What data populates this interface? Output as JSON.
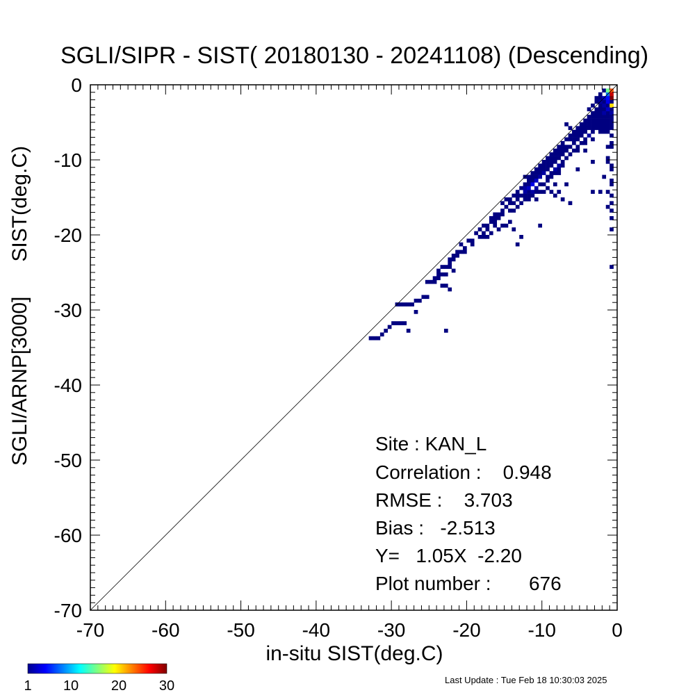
{
  "chart_data": {
    "type": "heatmap",
    "title": "SGLI/SIPR - SIST( 20180130 - 20241108) (Descending)",
    "xlabel": "in-situ SIST(deg.C)",
    "ylabel": "SGLI/ARNP[3000]      SIST(deg.C)",
    "xlim": [
      -70,
      0
    ],
    "ylim": [
      -70,
      0
    ],
    "x_ticks": [
      "-70",
      "-60",
      "-50",
      "-40",
      "-30",
      "-20",
      "-10",
      "0"
    ],
    "y_ticks": [
      "-70",
      "-60",
      "-50",
      "-40",
      "-30",
      "-20",
      "-10",
      "0"
    ],
    "reference_line": "y = x",
    "grid": false,
    "bin_size": 0.5,
    "stats": {
      "site": "Site : KAN_L",
      "correlation": "Correlation :    0.948",
      "rmse": "RMSE :    3.703",
      "bias": "Bias :   -2.513",
      "regression": "Y=   1.05X  -2.20",
      "plot_number": "Plot number :       676"
    },
    "colorbar": {
      "min": 1,
      "max": 30,
      "ticks": [
        "1",
        "10",
        "20",
        "30"
      ],
      "colormap": "jet"
    },
    "cells": [
      [
        -32.5,
        -33.5,
        1
      ],
      [
        -32,
        -33.5,
        1
      ],
      [
        -31.5,
        -33.5,
        1
      ],
      [
        -31,
        -33,
        1
      ],
      [
        -30.5,
        -32.5,
        1
      ],
      [
        -30,
        -32,
        1
      ],
      [
        -29.5,
        -31.5,
        1
      ],
      [
        -29,
        -31.5,
        1
      ],
      [
        -28.5,
        -31.5,
        1
      ],
      [
        -28,
        -31.5,
        1
      ],
      [
        -27.5,
        -32.5,
        1
      ],
      [
        -29,
        -29,
        1
      ],
      [
        -28.5,
        -29,
        1
      ],
      [
        -28,
        -29,
        1
      ],
      [
        -27.5,
        -29,
        1
      ],
      [
        -27,
        -29,
        1
      ],
      [
        -26.5,
        -28.5,
        1
      ],
      [
        -26,
        -28.5,
        1
      ],
      [
        -25.5,
        -28,
        1
      ],
      [
        -25,
        -28,
        1
      ],
      [
        -26.5,
        -30,
        1
      ],
      [
        -22.5,
        -32.5,
        1
      ],
      [
        -24.5,
        -26,
        1
      ],
      [
        -24,
        -26,
        1
      ],
      [
        -23.5,
        -25.5,
        1
      ],
      [
        -23,
        -26.5,
        1
      ],
      [
        -22.5,
        -26.5,
        1
      ],
      [
        -22,
        -27,
        1
      ],
      [
        -23.5,
        -24.5,
        1
      ],
      [
        -23,
        -24,
        1
      ],
      [
        -22.5,
        -24,
        1
      ],
      [
        -22,
        -24,
        1
      ],
      [
        -21.5,
        -24.5,
        1
      ],
      [
        -22.5,
        -25,
        1
      ],
      [
        -22,
        -23,
        1
      ],
      [
        -21.5,
        -22.5,
        1
      ],
      [
        -21,
        -22,
        1
      ],
      [
        -20.5,
        -22,
        1
      ],
      [
        -20,
        -21.5,
        1
      ],
      [
        -20.5,
        -21,
        1
      ],
      [
        -19.5,
        -20.5,
        1
      ],
      [
        -19,
        -20.5,
        1
      ],
      [
        -18.5,
        -19.5,
        1
      ],
      [
        -18,
        -19,
        1
      ],
      [
        -17.5,
        -20,
        1
      ],
      [
        -17,
        -20,
        1
      ],
      [
        -17.5,
        -18.5,
        1
      ],
      [
        -17,
        -18.5,
        1
      ],
      [
        -16.5,
        -18,
        1
      ],
      [
        -16.5,
        -19.5,
        1
      ],
      [
        -16,
        -18,
        1
      ],
      [
        -16.5,
        -17.5,
        1
      ],
      [
        -16,
        -17,
        1
      ],
      [
        -15.5,
        -17,
        1
      ],
      [
        -15,
        -16.5,
        1
      ],
      [
        -15.5,
        -19,
        1
      ],
      [
        -15,
        -18.5,
        1
      ],
      [
        -14.5,
        -18.5,
        1
      ],
      [
        -14,
        -18,
        1
      ],
      [
        -13.5,
        -19,
        1
      ],
      [
        -10,
        -18.5,
        1
      ],
      [
        -13,
        -21,
        1
      ],
      [
        -12.5,
        -20,
        1
      ],
      [
        -15,
        -15.5,
        1
      ],
      [
        -14.5,
        -15,
        1
      ],
      [
        -14,
        -15,
        1
      ],
      [
        -13.5,
        -14.5,
        1
      ],
      [
        -13,
        -14,
        1
      ],
      [
        -12.5,
        -13.5,
        1
      ],
      [
        -14.5,
        -16,
        1
      ],
      [
        -14,
        -16.5,
        1
      ],
      [
        -13.5,
        -16.5,
        1
      ],
      [
        -13,
        -16,
        1
      ],
      [
        -12.5,
        -15.5,
        1
      ],
      [
        -12,
        -15,
        1
      ],
      [
        -12,
        -13.5,
        2
      ],
      [
        -11.5,
        -13,
        1
      ],
      [
        -11,
        -12.5,
        1
      ],
      [
        -10.5,
        -12,
        1
      ],
      [
        -10,
        -11.5,
        1
      ],
      [
        -9.5,
        -11,
        1
      ],
      [
        -12,
        -12,
        1
      ],
      [
        -11.5,
        -12,
        1
      ],
      [
        -11,
        -11.5,
        1
      ],
      [
        -10.5,
        -11,
        1
      ],
      [
        -10,
        -10.5,
        1
      ],
      [
        -9.5,
        -10,
        1
      ],
      [
        -11.5,
        -14,
        1
      ],
      [
        -11,
        -14,
        2
      ],
      [
        -10.5,
        -13.5,
        2
      ],
      [
        -10,
        -13,
        1
      ],
      [
        -9.5,
        -13,
        1
      ],
      [
        -9,
        -12.5,
        1
      ],
      [
        -11.5,
        -15,
        1
      ],
      [
        -11,
        -14.5,
        1
      ],
      [
        -10.5,
        -15,
        1
      ],
      [
        -10,
        -14,
        1
      ],
      [
        -9.5,
        -14,
        1
      ],
      [
        -8.5,
        -14,
        1
      ],
      [
        -9,
        -11,
        1
      ],
      [
        -8.5,
        -10.5,
        1
      ],
      [
        -8,
        -10,
        1
      ],
      [
        -7.5,
        -9.5,
        1
      ],
      [
        -7,
        -9,
        1
      ],
      [
        -6.5,
        -8.5,
        1
      ],
      [
        -9,
        -9.5,
        1
      ],
      [
        -8.5,
        -9,
        1
      ],
      [
        -8,
        -8.5,
        1
      ],
      [
        -7.5,
        -8,
        1
      ],
      [
        -7,
        -7.5,
        1
      ],
      [
        -6.5,
        -7,
        1
      ],
      [
        -6,
        -6.5,
        1
      ],
      [
        -5.5,
        -6,
        1
      ],
      [
        -5,
        -5.5,
        1
      ],
      [
        -4.5,
        -5,
        1
      ],
      [
        -4,
        -4.5,
        1
      ],
      [
        -3.5,
        -4,
        1
      ],
      [
        -8.5,
        -12,
        1
      ],
      [
        -8,
        -11.5,
        1
      ],
      [
        -7.5,
        -11,
        1
      ],
      [
        -7,
        -10.5,
        1
      ],
      [
        -8,
        -13,
        1
      ],
      [
        -7.5,
        -14,
        1
      ],
      [
        -6,
        -8,
        1
      ],
      [
        -5.5,
        -7.5,
        1
      ],
      [
        -5,
        -7,
        1
      ],
      [
        -4.5,
        -6.5,
        1
      ],
      [
        -4,
        -6,
        1
      ],
      [
        -3.5,
        -5.5,
        1
      ],
      [
        -6,
        -7,
        1
      ],
      [
        -5.5,
        -6.5,
        1
      ],
      [
        -5,
        -6,
        1
      ],
      [
        -4.5,
        -5.5,
        1
      ],
      [
        -4,
        -5,
        1
      ],
      [
        -3.5,
        -4.5,
        1
      ],
      [
        -6.5,
        -5,
        1
      ],
      [
        -6,
        -5.5,
        1
      ],
      [
        -3,
        -3.5,
        1
      ],
      [
        -2.5,
        -3,
        1
      ],
      [
        -2,
        -2.5,
        1
      ],
      [
        -1.5,
        -2,
        1
      ],
      [
        -3,
        -4.5,
        1
      ],
      [
        -2.5,
        -4,
        1
      ],
      [
        -2,
        -3.5,
        1
      ],
      [
        -1.5,
        -3,
        1
      ],
      [
        -1,
        -2.5,
        1
      ],
      [
        -0.5,
        -2,
        1
      ],
      [
        -3,
        -5.5,
        1
      ],
      [
        -2.5,
        -5,
        1
      ],
      [
        -2,
        -4.5,
        1
      ],
      [
        -1.5,
        -4,
        1
      ],
      [
        -1,
        -3.5,
        1
      ],
      [
        -0.5,
        -3,
        1
      ],
      [
        -2,
        -6,
        1
      ],
      [
        -1.5,
        -5.5,
        1
      ],
      [
        -1,
        -5,
        1
      ],
      [
        -0.5,
        -4.5,
        1
      ],
      [
        -1,
        -6,
        1
      ],
      [
        -0.5,
        -6.5,
        1
      ],
      [
        -3,
        -7,
        1
      ],
      [
        -4,
        -7.5,
        1
      ],
      [
        -5,
        -8.5,
        1
      ],
      [
        -0.5,
        -7.5,
        1
      ],
      [
        -0.5,
        -8,
        1
      ],
      [
        -1,
        -8,
        1
      ],
      [
        -2.5,
        -1.5,
        1
      ],
      [
        -2,
        -1.5,
        1
      ],
      [
        -2,
        -1,
        1
      ],
      [
        -1.5,
        -0.5,
        1
      ],
      [
        -1,
        -1,
        8
      ],
      [
        -1,
        -0.5,
        15
      ],
      [
        -0.5,
        -0.5,
        24
      ],
      [
        -0.5,
        -1,
        28
      ],
      [
        -0.5,
        -1.5,
        30
      ],
      [
        -0.5,
        -2.5,
        20
      ],
      [
        -1,
        -1.5,
        5
      ],
      [
        -1.5,
        -1.5,
        3
      ],
      [
        -1,
        -2,
        4
      ],
      [
        -0.5,
        -3.5,
        2
      ],
      [
        -1.5,
        -2.5,
        2
      ],
      [
        -2,
        -2,
        2
      ],
      [
        -1,
        -3,
        3
      ],
      [
        -1.5,
        -3.5,
        2
      ],
      [
        -2.5,
        -2,
        1
      ],
      [
        -3,
        -2.5,
        1
      ],
      [
        -0.5,
        -5,
        1
      ],
      [
        -0.5,
        -5.5,
        1
      ],
      [
        -0.5,
        -10.5,
        1
      ],
      [
        -0.5,
        -11,
        1
      ],
      [
        -0.5,
        -12.5,
        1
      ],
      [
        -0.5,
        -13,
        1
      ],
      [
        -0.5,
        -14.5,
        1
      ],
      [
        -0.5,
        -15.5,
        1
      ],
      [
        -0.5,
        -16.5,
        1
      ],
      [
        -0.5,
        -17.5,
        1
      ],
      [
        -0.5,
        -19,
        1
      ],
      [
        -0.5,
        -24,
        1
      ],
      [
        -1,
        -9.5,
        1
      ],
      [
        -1,
        -14,
        1
      ],
      [
        -1,
        -16,
        1
      ],
      [
        -1.5,
        -12,
        1
      ],
      [
        -2,
        -14,
        1
      ],
      [
        -3,
        -14,
        1
      ],
      [
        -6,
        -15.5,
        1
      ],
      [
        -7,
        -15,
        1
      ],
      [
        -7.5,
        -11.5,
        1
      ],
      [
        -6.5,
        -13,
        1
      ],
      [
        -5,
        -11,
        1
      ],
      [
        -4,
        -8.5,
        1
      ],
      [
        -9,
        -13.5,
        1
      ],
      [
        -8,
        -14.5,
        1
      ],
      [
        -3,
        -10,
        1
      ],
      [
        -1,
        -10,
        1
      ],
      [
        -12,
        -14,
        2
      ],
      [
        -11.5,
        -13.5,
        3
      ],
      [
        -11,
        -13,
        4
      ],
      [
        -10.5,
        -12.5,
        3
      ],
      [
        -10,
        -12,
        2
      ],
      [
        -9.5,
        -11.5,
        2
      ],
      [
        -12,
        -14.5,
        1
      ],
      [
        -11.5,
        -14.5,
        1
      ],
      [
        -10.5,
        -14,
        1
      ],
      [
        -9,
        -12,
        1
      ],
      [
        -8.5,
        -11.5,
        1
      ],
      [
        -8,
        -11,
        2
      ],
      [
        -7.5,
        -10.5,
        2
      ],
      [
        -7,
        -10,
        1
      ],
      [
        -6.5,
        -9.5,
        1
      ],
      [
        -6,
        -9,
        1
      ],
      [
        -5.5,
        -8.5,
        1
      ],
      [
        -5,
        -8,
        1
      ],
      [
        -4.5,
        -7.5,
        1
      ],
      [
        -4,
        -7,
        1
      ],
      [
        -3.5,
        -6.5,
        2
      ],
      [
        -3,
        -6,
        1
      ],
      [
        -2.5,
        -5.5,
        1
      ],
      [
        -2,
        -5,
        1
      ],
      [
        -6.5,
        -8,
        1
      ],
      [
        -7,
        -8.5,
        1
      ],
      [
        -7.5,
        -9,
        1
      ],
      [
        -8,
        -9.5,
        1
      ],
      [
        -8.5,
        -10,
        1
      ],
      [
        -9,
        -10.5,
        1
      ],
      [
        -13,
        -15,
        1
      ],
      [
        -13.5,
        -15.5,
        1
      ],
      [
        -14,
        -15.5,
        1
      ],
      [
        -15,
        -17,
        1
      ],
      [
        -15.5,
        -17.5,
        1
      ],
      [
        -16,
        -18.5,
        1
      ],
      [
        -17,
        -19,
        1
      ],
      [
        -17.5,
        -19.5,
        1
      ],
      [
        -18,
        -20,
        1
      ],
      [
        -19,
        -21,
        1
      ],
      [
        -20,
        -22,
        1
      ],
      [
        -21,
        -22.5,
        1
      ],
      [
        -21.5,
        -23,
        1
      ],
      [
        -22,
        -23.5,
        1
      ],
      [
        -23,
        -25,
        1
      ],
      [
        -23.5,
        -25,
        1
      ],
      [
        -24,
        -25.5,
        1
      ],
      [
        -25,
        -26,
        1
      ],
      [
        -16,
        -17.5,
        1
      ],
      [
        -13,
        -14.5,
        1
      ],
      [
        -12.5,
        -14.5,
        1
      ],
      [
        -12,
        -13,
        1
      ],
      [
        -11.5,
        -12.5,
        1
      ],
      [
        -11,
        -12,
        1
      ],
      [
        -10.5,
        -11.5,
        1
      ],
      [
        -10,
        -11,
        1
      ],
      [
        -9.5,
        -10.5,
        1
      ],
      [
        -9,
        -10,
        1
      ],
      [
        -8.5,
        -9.5,
        1
      ],
      [
        -8,
        -9,
        1
      ],
      [
        -7.5,
        -8.5,
        1
      ],
      [
        -7,
        -8,
        1
      ],
      [
        -5.5,
        -7,
        1
      ],
      [
        -5,
        -6.5,
        1
      ],
      [
        -4.5,
        -6,
        1
      ],
      [
        -4,
        -5.5,
        1
      ],
      [
        -3.5,
        -5,
        1
      ],
      [
        -3,
        -5,
        1
      ],
      [
        -2.5,
        -4.5,
        1
      ],
      [
        -2,
        -4,
        1
      ],
      [
        -1.5,
        -4.5,
        1
      ],
      [
        -1,
        -4,
        1
      ],
      [
        -0.5,
        -4,
        1
      ],
      [
        -1,
        -4.5,
        1
      ],
      [
        -2.5,
        -3.5,
        1
      ],
      [
        -3,
        -4,
        1
      ],
      [
        -3.5,
        -3,
        1
      ],
      [
        -2,
        -3,
        1
      ],
      [
        -1.5,
        -5,
        1
      ],
      [
        -1,
        -5.5,
        1
      ],
      [
        -2,
        -5.5,
        1
      ],
      [
        -1.5,
        -6,
        1
      ]
    ]
  },
  "footer": {
    "last_update": "Last Update : Tue Feb 18 10:30:03 2025"
  }
}
